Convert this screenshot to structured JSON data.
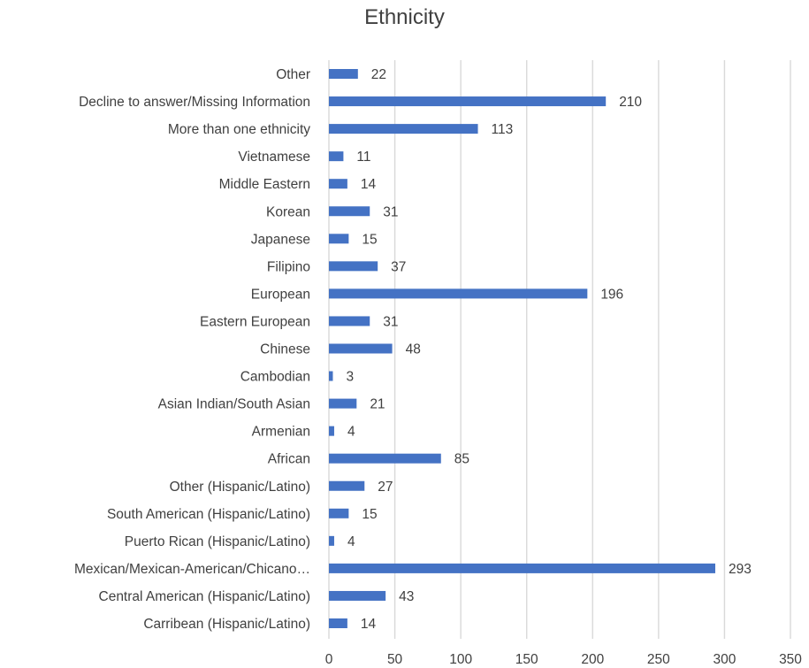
{
  "chart_data": {
    "type": "bar",
    "orientation": "horizontal",
    "title": "Ethnicity",
    "xlabel": "",
    "ylabel": "",
    "xlim": [
      0,
      350
    ],
    "x_ticks": [
      0,
      50,
      100,
      150,
      200,
      250,
      300,
      350
    ],
    "grid": true,
    "legend": "none",
    "bar_color": "#4472c4",
    "categories": [
      "Other",
      "Decline to answer/Missing Information",
      "More than one ethnicity",
      "Vietnamese",
      "Middle Eastern",
      "Korean",
      "Japanese",
      "Filipino",
      "European",
      "Eastern European",
      "Chinese",
      "Cambodian",
      "Asian Indian/South Asian",
      "Armenian",
      "African",
      "Other (Hispanic/Latino)",
      "South American (Hispanic/Latino)",
      "Puerto Rican (Hispanic/Latino)",
      "Mexican/Mexican-American/Chicano…",
      "Central American (Hispanic/Latino)",
      "Carribean (Hispanic/Latino)"
    ],
    "values": [
      22,
      210,
      113,
      11,
      14,
      31,
      15,
      37,
      196,
      31,
      48,
      3,
      21,
      4,
      85,
      27,
      15,
      4,
      293,
      43,
      14
    ]
  }
}
